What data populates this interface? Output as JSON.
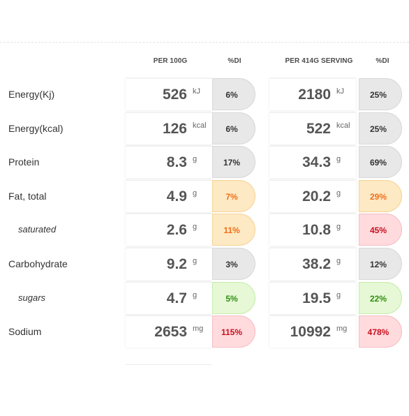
{
  "headers": {
    "per100": "PER 100G",
    "di1": "%DI",
    "serving": "PER 414G SERVING",
    "di2": "%DI"
  },
  "colors": {
    "grey": "#e8e8e8",
    "orange": "#fde9c4",
    "red": "#ffdbde",
    "green": "#e6f8d5"
  },
  "rows": [
    {
      "label": "Energy(Kj)",
      "v1": "526",
      "u1": "kJ",
      "p1": "6%",
      "c1": "grey",
      "v2": "2180",
      "u2": "kJ",
      "p2": "25%",
      "c2": "grey"
    },
    {
      "label": "Energy(kcal)",
      "v1": "126",
      "u1": "kcal",
      "p1": "6%",
      "c1": "grey",
      "v2": "522",
      "u2": "kcal",
      "p2": "25%",
      "c2": "grey"
    },
    {
      "label": "Protein",
      "v1": "8.3",
      "u1": "g",
      "p1": "17%",
      "c1": "grey",
      "v2": "34.3",
      "u2": "g",
      "p2": "69%",
      "c2": "grey"
    },
    {
      "label": "Fat, total",
      "v1": "4.9",
      "u1": "g",
      "p1": "7%",
      "c1": "orange",
      "v2": "20.2",
      "u2": "g",
      "p2": "29%",
      "c2": "orange"
    },
    {
      "label": "saturated",
      "v1": "2.6",
      "u1": "g",
      "p1": "11%",
      "c1": "orange",
      "v2": "10.8",
      "u2": "g",
      "p2": "45%",
      "c2": "red"
    },
    {
      "label": "Carbohydrate",
      "v1": "9.2",
      "u1": "g",
      "p1": "3%",
      "c1": "grey",
      "v2": "38.2",
      "u2": "g",
      "p2": "12%",
      "c2": "grey"
    },
    {
      "label": "sugars",
      "v1": "4.7",
      "u1": "g",
      "p1": "5%",
      "c1": "green",
      "v2": "19.5",
      "u2": "g",
      "p2": "22%",
      "c2": "green"
    },
    {
      "label": "Sodium",
      "v1": "2653",
      "u1": "mg",
      "p1": "115%",
      "c1": "red",
      "v2": "10992",
      "u2": "mg",
      "p2": "478%",
      "c2": "red"
    }
  ]
}
